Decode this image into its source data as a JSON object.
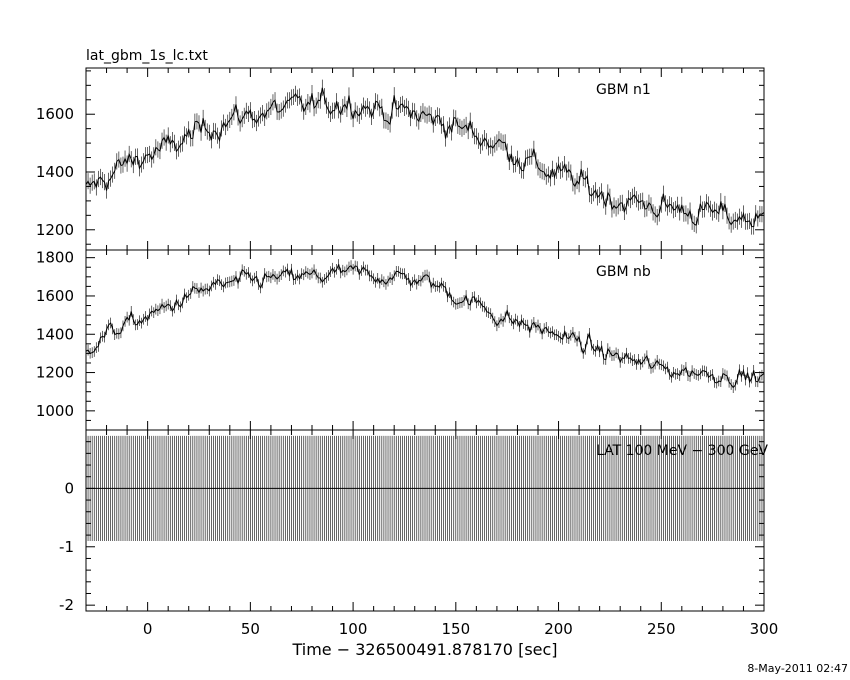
{
  "header": {
    "title": "lat_gbm_1s_lc.txt"
  },
  "footer": {
    "timestamp": "8-May-2011 02:47"
  },
  "chart_data": [
    {
      "type": "line",
      "title": "lat_gbm_1s_lc.txt",
      "label": "GBM n1",
      "xlabel": "Time − 326500491.878170 [sec]",
      "xlim": [
        -30,
        300
      ],
      "ylim": [
        1130,
        1760
      ],
      "yticks": [
        1200,
        1400,
        1600
      ],
      "xticks": [
        0,
        50,
        100,
        150,
        200,
        250,
        300
      ],
      "errorbars": true,
      "x": [
        -30,
        -20,
        -10,
        0,
        10,
        20,
        30,
        40,
        50,
        60,
        70,
        80,
        90,
        100,
        110,
        120,
        130,
        140,
        150,
        160,
        170,
        180,
        190,
        200,
        210,
        220,
        230,
        240,
        250,
        260,
        270,
        280,
        290,
        300
      ],
      "values": [
        1330,
        1380,
        1430,
        1460,
        1480,
        1520,
        1560,
        1580,
        1600,
        1610,
        1620,
        1630,
        1640,
        1645,
        1620,
        1610,
        1600,
        1580,
        1560,
        1530,
        1500,
        1460,
        1420,
        1390,
        1360,
        1330,
        1300,
        1290,
        1280,
        1270,
        1260,
        1250,
        1240,
        1230
      ]
    },
    {
      "type": "line",
      "label": "GBM nb",
      "xlim": [
        -30,
        300
      ],
      "ylim": [
        900,
        1840
      ],
      "yticks": [
        1000,
        1200,
        1400,
        1600,
        1800
      ],
      "errorbars": true,
      "x": [
        -30,
        -20,
        -10,
        0,
        10,
        20,
        30,
        40,
        50,
        60,
        70,
        80,
        90,
        100,
        110,
        120,
        130,
        140,
        150,
        160,
        170,
        180,
        190,
        200,
        210,
        220,
        230,
        240,
        250,
        260,
        270,
        280,
        290,
        300
      ],
      "values": [
        1330,
        1400,
        1450,
        1490,
        1540,
        1600,
        1640,
        1660,
        1680,
        1690,
        1695,
        1700,
        1710,
        1720,
        1710,
        1700,
        1690,
        1660,
        1600,
        1560,
        1500,
        1460,
        1430,
        1400,
        1360,
        1310,
        1280,
        1250,
        1220,
        1210,
        1200,
        1190,
        1180,
        1170
      ]
    },
    {
      "type": "line",
      "label": "LAT 100 MeV − 300 GeV",
      "xlim": [
        -30,
        300
      ],
      "ylim": [
        -2.1,
        1.0
      ],
      "yticks": [
        -2,
        -1,
        0
      ],
      "values_constant": 0,
      "errorbar_halfwidth": 0.9,
      "errorbar_spacing": 1
    }
  ]
}
